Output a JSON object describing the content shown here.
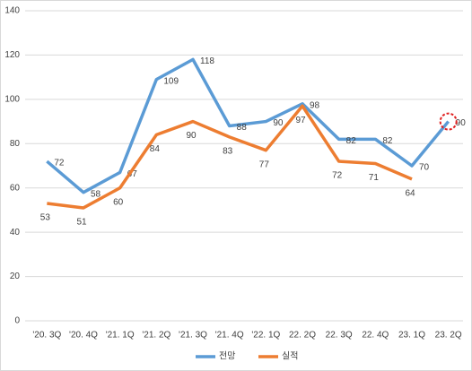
{
  "chart_data": {
    "type": "line",
    "categories": [
      "'20. 3Q",
      "'20. 4Q",
      "'21. 1Q",
      "'21. 2Q",
      "'21. 3Q",
      "'21. 4Q",
      "'22. 1Q",
      "22. 2Q",
      "22. 3Q",
      "22. 4Q",
      "23. 1Q",
      "23. 2Q"
    ],
    "series": [
      {
        "name": "전망",
        "color": "#5b9bd5",
        "values": [
          72,
          58,
          67,
          109,
          118,
          88,
          90,
          98,
          82,
          82,
          70,
          90
        ]
      },
      {
        "name": "실적",
        "color": "#ed7d31",
        "values": [
          53,
          51,
          60,
          84,
          90,
          83,
          77,
          97,
          72,
          71,
          64,
          null
        ]
      }
    ],
    "ylim": [
      0,
      140
    ],
    "yticks": [
      0,
      20,
      40,
      60,
      80,
      100,
      120,
      140
    ],
    "grid": true,
    "legend": "bottom"
  }
}
